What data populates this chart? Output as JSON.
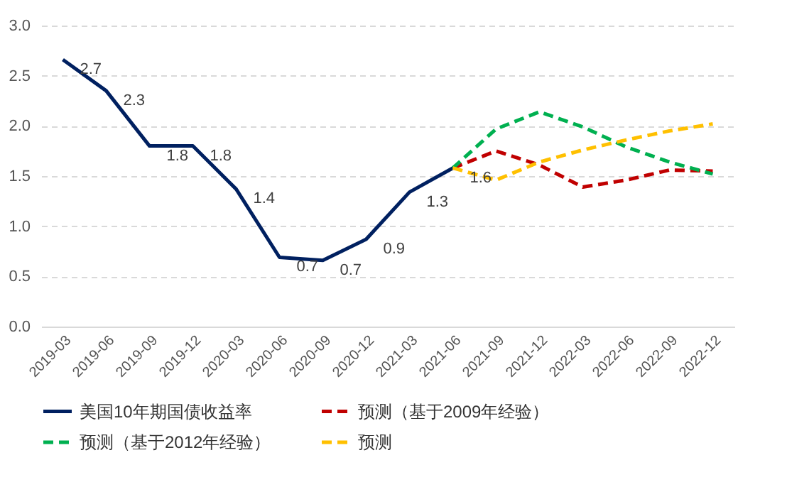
{
  "chart_data": {
    "type": "line",
    "categories": [
      "2019-03",
      "2019-06",
      "2019-09",
      "2019-12",
      "2020-03",
      "2020-06",
      "2020-09",
      "2020-12",
      "2021-03",
      "2021-06",
      "2021-09",
      "2021-12",
      "2022-03",
      "2022-06",
      "2022-09",
      "2022-12"
    ],
    "series": [
      {
        "name": "美国10年期国债收益率",
        "color": "#002060",
        "line_style": "solid",
        "values": [
          2.66,
          2.35,
          1.8,
          1.8,
          1.37,
          0.69,
          0.66,
          0.87,
          1.34,
          1.58,
          null,
          null,
          null,
          null,
          null,
          null
        ],
        "value_labels": [
          "2.7",
          "2.3",
          "1.8",
          "1.8",
          "1.4",
          "0.7",
          "0.7",
          "0.9",
          "1.3",
          "1.6",
          null,
          null,
          null,
          null,
          null,
          null
        ]
      },
      {
        "name": "预测（基于2009年经验）",
        "color": "#c00000",
        "line_style": "dashed",
        "values": [
          null,
          null,
          null,
          null,
          null,
          null,
          null,
          null,
          null,
          1.58,
          1.75,
          1.61,
          1.39,
          1.46,
          1.56,
          1.55
        ]
      },
      {
        "name": "预测（基于2012年经验）",
        "color": "#00b050",
        "line_style": "dashed",
        "values": [
          null,
          null,
          null,
          null,
          null,
          null,
          null,
          null,
          null,
          1.58,
          1.97,
          2.14,
          1.99,
          1.79,
          1.64,
          1.52
        ]
      },
      {
        "name": "预测",
        "color": "#ffc000",
        "line_style": "dashed",
        "values": [
          null,
          null,
          null,
          null,
          null,
          null,
          null,
          null,
          null,
          1.58,
          1.46,
          1.64,
          1.76,
          1.86,
          1.95,
          2.02
        ]
      }
    ],
    "ylim": [
      0,
      3
    ],
    "yticks": [
      {
        "value": 0,
        "label": "0.0"
      },
      {
        "value": 0.5,
        "label": "0.5"
      },
      {
        "value": 1,
        "label": "1.0"
      },
      {
        "value": 1.5,
        "label": "1.5"
      },
      {
        "value": 2,
        "label": "2.0"
      },
      {
        "value": 2.5,
        "label": "2.5"
      },
      {
        "value": 3,
        "label": "3.0"
      }
    ],
    "grid": "y",
    "legend": "bottom",
    "marker": "none"
  }
}
